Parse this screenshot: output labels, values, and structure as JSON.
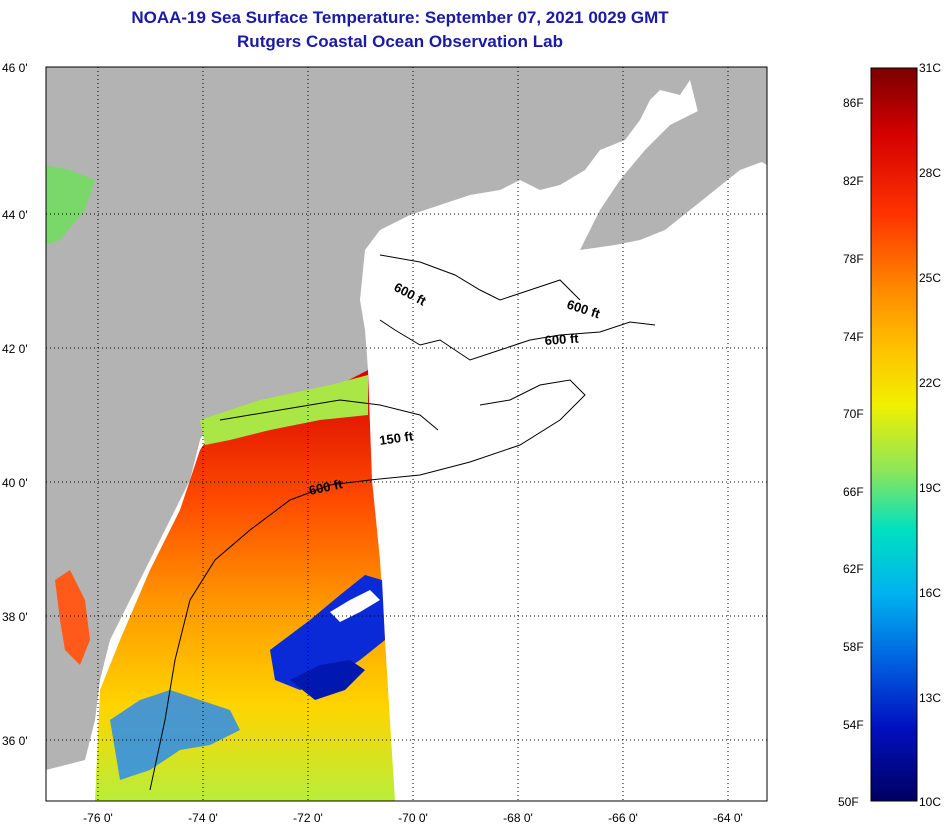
{
  "header": {
    "title": "NOAA-19 Sea Surface Temperature:  September 07, 2021 0029 GMT",
    "subtitle": "Rutgers Coastal Ocean Observation Lab",
    "title_color": "#1a1aa6"
  },
  "map": {
    "lon_range": [
      -77,
      -63
    ],
    "lat_range": [
      35,
      46
    ],
    "lon_labels": [
      "-76 0'",
      "-74 0'",
      "-72 0'",
      "-70 0'",
      "-68 0'",
      "-66 0'",
      "-64 0'"
    ],
    "lat_labels": [
      "46 0'",
      "44 0'",
      "42 0'",
      "40 0'",
      "38 0'",
      "36 0'"
    ],
    "land_color": "#b3b3b3",
    "contour_labels": [
      {
        "text": "600 ft"
      },
      {
        "text": "600 ft"
      },
      {
        "text": "600 ft"
      },
      {
        "text": "150 ft"
      },
      {
        "text": "600 ft"
      }
    ]
  },
  "colorbar": {
    "fahrenheit": [
      "86F",
      "82F",
      "78F",
      "74F",
      "70F",
      "66F",
      "62F",
      "58F",
      "54F",
      "50F"
    ],
    "celsius": [
      "31C",
      "28C",
      "25C",
      "22C",
      "19C",
      "16C",
      "13C",
      "10C"
    ],
    "stops": [
      "#7a0000",
      "#d40000",
      "#ff3300",
      "#ff8800",
      "#ffc000",
      "#f0f000",
      "#8ce65a",
      "#00e0c0",
      "#00b0f0",
      "#0060e0",
      "#0010c0",
      "#000060"
    ]
  }
}
